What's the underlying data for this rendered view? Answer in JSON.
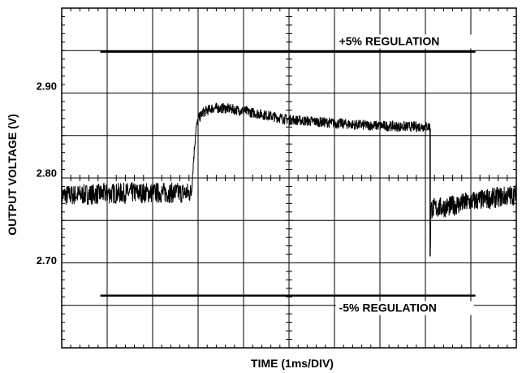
{
  "chart_data": {
    "type": "line",
    "title": "",
    "xlabel": "TIME (1ms/DIV)",
    "ylabel": "OUTPUT VOLTAGE (V)",
    "x_unit": "ms",
    "xlim": [
      0,
      10
    ],
    "ylim": [
      2.6,
      2.99
    ],
    "yticks": [
      "2.70",
      "2.80",
      "2.90"
    ],
    "ytick_values": [
      2.7,
      2.8,
      2.9
    ],
    "grid": true,
    "series": [
      {
        "x": [
          0,
          0.5,
          1.0,
          1.5,
          2.0,
          2.5,
          2.85,
          2.9,
          2.95,
          3.0,
          3.1,
          3.3,
          3.6,
          4.0,
          4.5,
          5.0,
          5.5,
          6.0,
          6.5,
          7.0,
          7.5,
          8.0,
          8.1,
          8.11,
          8.12,
          8.15,
          8.5,
          9.0,
          9.5,
          10.0
        ],
        "y": [
          2.775,
          2.776,
          2.777,
          2.778,
          2.778,
          2.778,
          2.778,
          2.815,
          2.85,
          2.862,
          2.87,
          2.875,
          2.875,
          2.872,
          2.867,
          2.862,
          2.86,
          2.858,
          2.856,
          2.855,
          2.854,
          2.854,
          2.854,
          2.71,
          2.76,
          2.76,
          2.762,
          2.768,
          2.772,
          2.776
        ],
        "noise": [
          0.012,
          0.012,
          0.012,
          0.012,
          0.012,
          0.012,
          0.012,
          0.006,
          0.006,
          0.006,
          0.006,
          0.006,
          0.006,
          0.006,
          0.006,
          0.006,
          0.006,
          0.006,
          0.006,
          0.006,
          0.006,
          0.006,
          0.006,
          0.0,
          0.012,
          0.012,
          0.012,
          0.012,
          0.012,
          0.012
        ]
      }
    ],
    "reference_lines": [
      {
        "y": 2.94,
        "x_start": 0.85,
        "x_end": 9.1,
        "label": "+5% REGULATION",
        "label_x": 6.1
      },
      {
        "y": 2.66,
        "x_start": 0.85,
        "x_end": 9.1,
        "label": "-5% REGULATION",
        "label_x": 6.1
      }
    ]
  }
}
